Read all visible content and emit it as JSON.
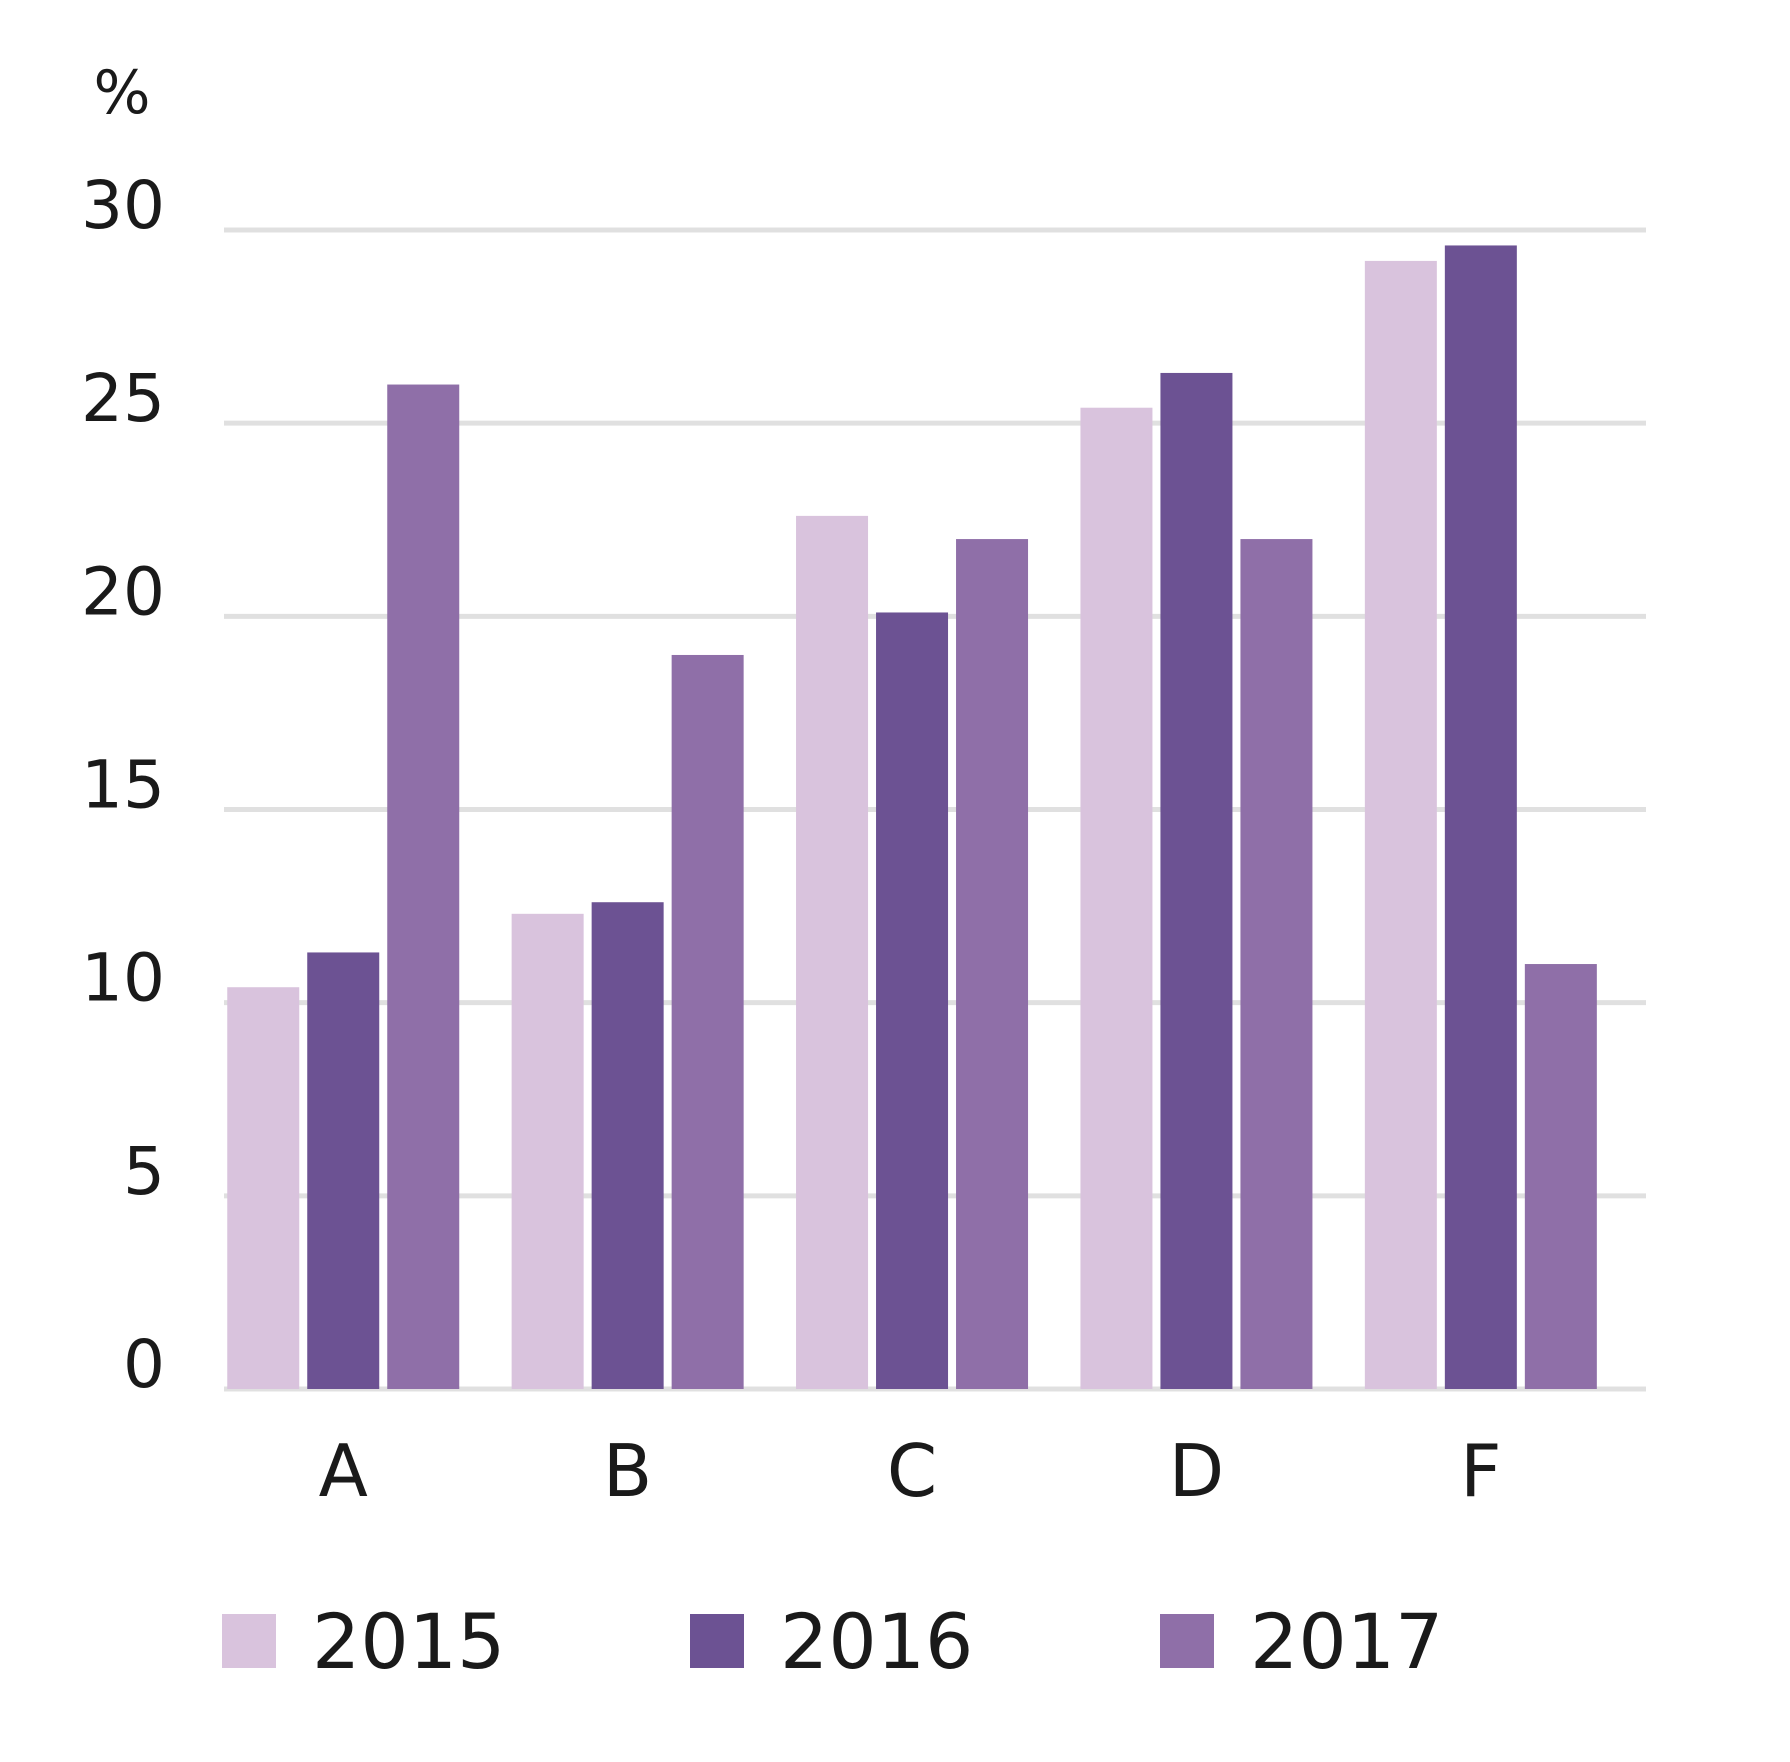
{
  "chart_data": {
    "type": "bar",
    "title": "",
    "xlabel": "",
    "ylabel": "%",
    "categories": [
      "A",
      "B",
      "C",
      "D",
      "F"
    ],
    "series": [
      {
        "name": "2015",
        "color": "#d9c3dd",
        "values": [
          10.4,
          12.3,
          22.6,
          25.4,
          29.2
        ]
      },
      {
        "name": "2016",
        "color": "#6c5293",
        "values": [
          11.3,
          12.6,
          20.1,
          26.3,
          29.6
        ]
      },
      {
        "name": "2017",
        "color": "#8f6fa8",
        "values": [
          26.0,
          19.0,
          22.0,
          22.0,
          11.0
        ]
      }
    ],
    "ylim": [
      0,
      30
    ],
    "yticks": [
      0,
      5,
      10,
      15,
      20,
      25,
      30
    ],
    "grid": true,
    "gridColor": "#e0e0e0",
    "legend": "bottom"
  }
}
